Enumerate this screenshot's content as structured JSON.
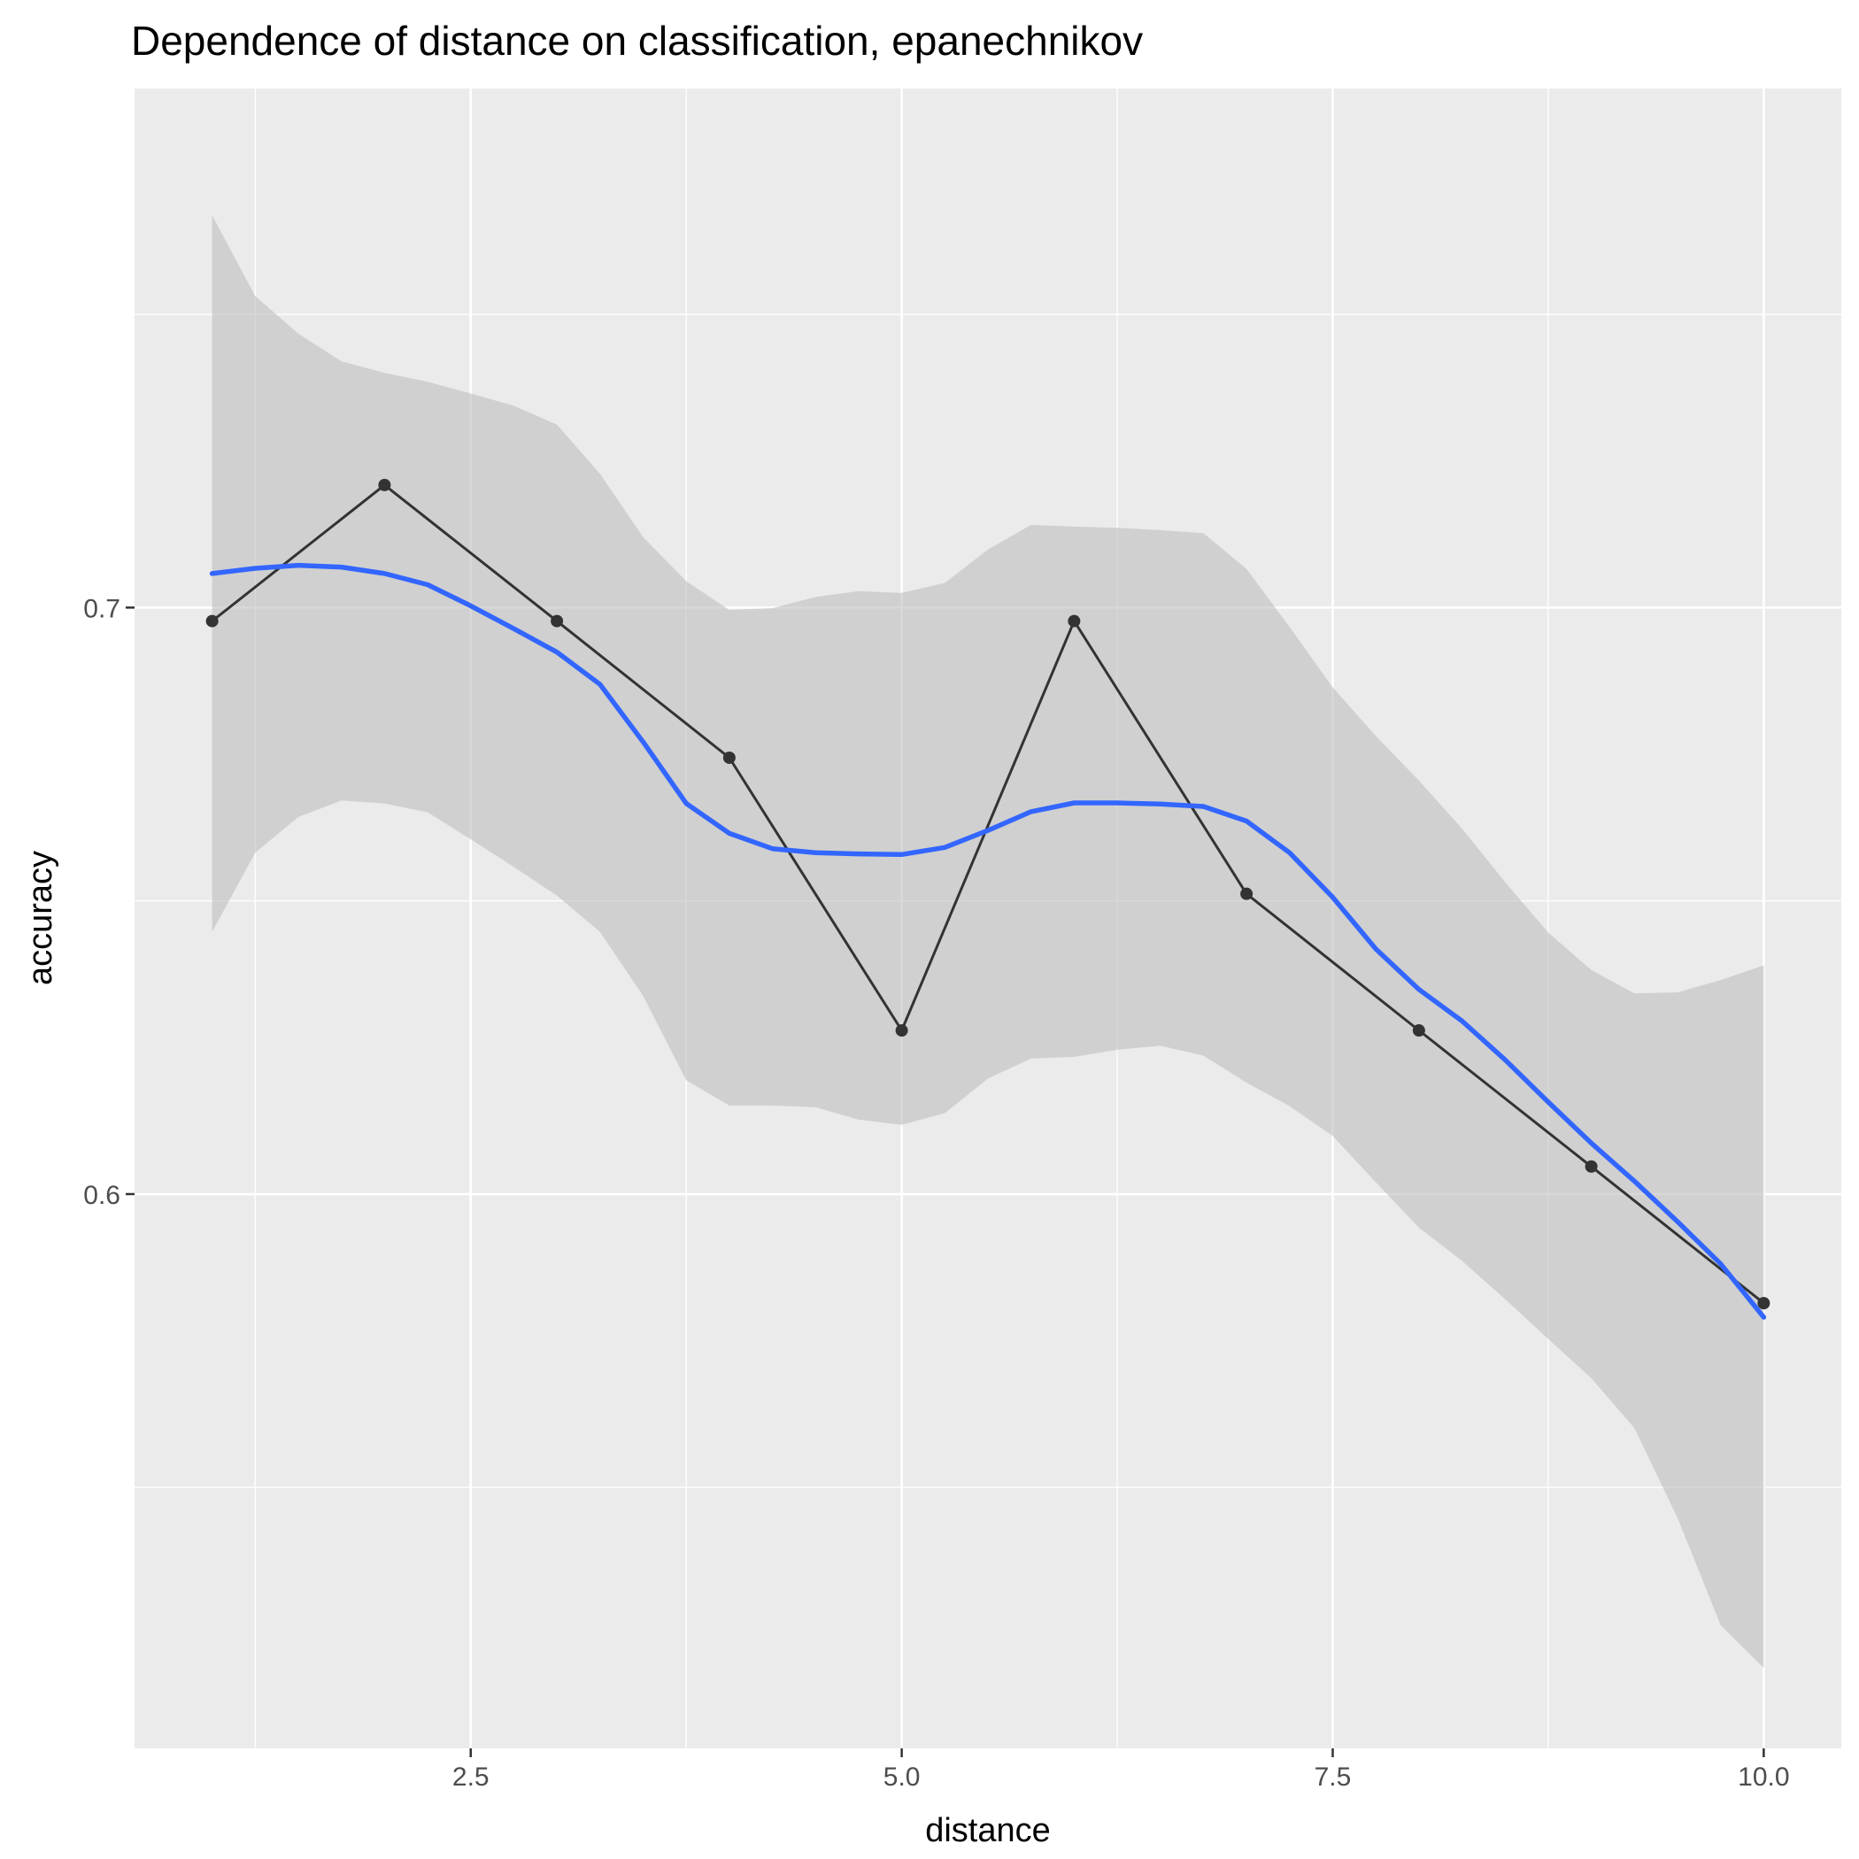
{
  "chart_data": {
    "type": "line",
    "title": "Dependence of distance on classification, epanechnikov",
    "xlabel": "distance",
    "ylabel": "accuracy",
    "xlim": [
      0.55,
      10.45
    ],
    "ylim": [
      0.5055,
      0.7885
    ],
    "x_ticks": [
      2.5,
      5.0,
      7.5,
      10.0
    ],
    "x_tick_labels": [
      "2.5",
      "5.0",
      "7.5",
      "10.0"
    ],
    "y_ticks": [
      0.6,
      0.7
    ],
    "y_tick_labels": [
      "0.6",
      "0.7"
    ],
    "x_minor_ticks": [
      1.25,
      3.75,
      6.25,
      8.75
    ],
    "y_minor_ticks": [
      0.55,
      0.65,
      0.75
    ],
    "grid": true,
    "colors": {
      "panel": "#ebebeb",
      "grid": "#ffffff",
      "series": "#333333",
      "smooth": "#3366ff",
      "ribbon": "#c0c0c0"
    },
    "series": [
      {
        "x": [
          1,
          2,
          3,
          4,
          5,
          6,
          7,
          8,
          9,
          10
        ],
        "values": [
          0.6977,
          0.7209,
          0.6977,
          0.6744,
          0.6279,
          0.6977,
          0.6512,
          0.6279,
          0.6047,
          0.5814
        ]
      }
    ],
    "smooth": {
      "x": [
        1.0,
        1.25,
        1.5,
        1.75,
        2.0,
        2.25,
        2.5,
        2.75,
        3.0,
        3.25,
        3.5,
        3.75,
        4.0,
        4.25,
        4.5,
        4.75,
        5.0,
        5.25,
        5.5,
        5.75,
        6.0,
        6.25,
        6.5,
        6.75,
        7.0,
        7.25,
        7.5,
        7.75,
        8.0,
        8.25,
        8.5,
        8.75,
        9.0,
        9.25,
        9.5,
        9.75,
        10.0
      ],
      "y": [
        0.7058,
        0.7067,
        0.7072,
        0.7069,
        0.7058,
        0.7039,
        0.7003,
        0.6964,
        0.6924,
        0.6869,
        0.6771,
        0.6666,
        0.6615,
        0.6589,
        0.6582,
        0.658,
        0.6579,
        0.6591,
        0.662,
        0.6652,
        0.6667,
        0.6667,
        0.6665,
        0.6661,
        0.6636,
        0.6582,
        0.6506,
        0.6418,
        0.6349,
        0.6295,
        0.6229,
        0.6157,
        0.6087,
        0.6022,
        0.5953,
        0.5881,
        0.579
      ],
      "lower": [
        0.6447,
        0.6582,
        0.6643,
        0.6671,
        0.6666,
        0.6651,
        0.6605,
        0.6558,
        0.6509,
        0.6447,
        0.6338,
        0.6194,
        0.6151,
        0.6151,
        0.6148,
        0.6127,
        0.6118,
        0.6138,
        0.6197,
        0.6231,
        0.6234,
        0.6246,
        0.6253,
        0.6236,
        0.619,
        0.615,
        0.6099,
        0.602,
        0.5943,
        0.5886,
        0.5821,
        0.5753,
        0.5686,
        0.5601,
        0.5448,
        0.5265,
        0.5192
      ],
      "upper": [
        0.7669,
        0.7531,
        0.7467,
        0.742,
        0.74,
        0.7385,
        0.7365,
        0.7344,
        0.7312,
        0.7228,
        0.712,
        0.7045,
        0.6996,
        0.6999,
        0.7018,
        0.7028,
        0.7025,
        0.7042,
        0.7099,
        0.7141,
        0.7138,
        0.7136,
        0.7132,
        0.7127,
        0.7066,
        0.6967,
        0.6864,
        0.6781,
        0.6705,
        0.6623,
        0.6532,
        0.6446,
        0.6382,
        0.6342,
        0.6344,
        0.6365,
        0.639
      ]
    }
  }
}
